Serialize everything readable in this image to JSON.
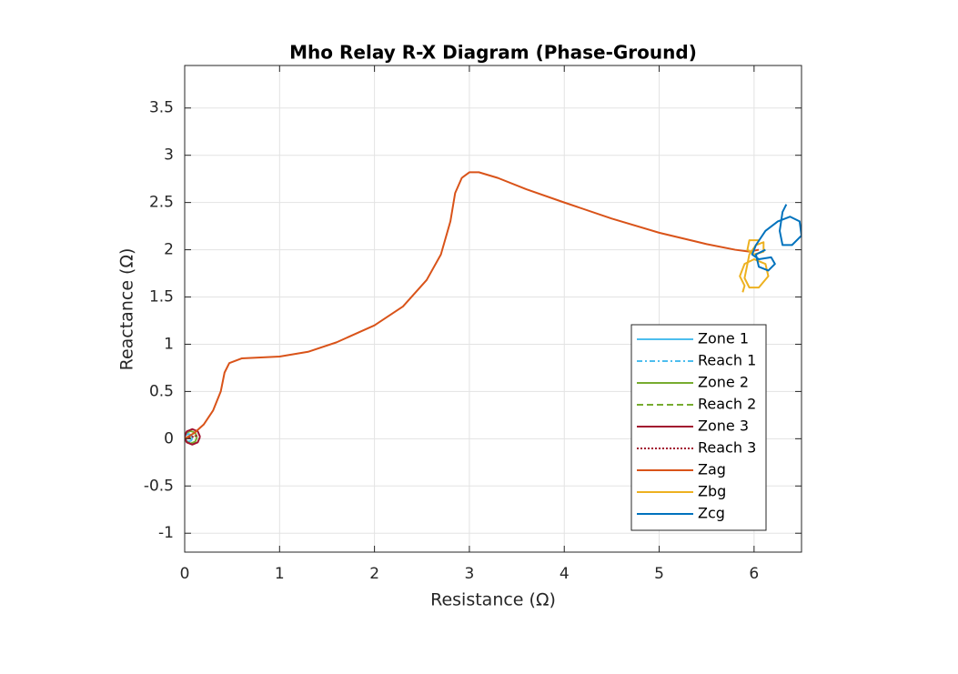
{
  "chart_data": {
    "type": "line",
    "title": "Mho Relay R-X Diagram (Phase-Ground)",
    "xlabel": "Resistance (Ω)",
    "ylabel": "Reactance (Ω)",
    "xlim": [
      0,
      6.5
    ],
    "ylim": [
      -1.2,
      3.95
    ],
    "xticks": [
      0,
      1,
      2,
      3,
      4,
      5,
      6
    ],
    "yticks": [
      -1,
      -0.5,
      0,
      0.5,
      1,
      1.5,
      2,
      2.5,
      3,
      3.5
    ],
    "grid": true,
    "legend_location": "southeast",
    "series": [
      {
        "name": "Zone 1",
        "color": "#4DBEEE",
        "dash": "solid",
        "x": [
          0.081,
          0.069,
          0.04,
          0.011,
          -0.001,
          0.011,
          0.04,
          0.069,
          0.081
        ],
        "y": [
          0.01,
          0.039,
          0.051,
          0.039,
          0.01,
          -0.019,
          -0.031,
          -0.019,
          0.01
        ]
      },
      {
        "name": "Reach 1",
        "color": "#4DBEEE",
        "dash": "dashdot",
        "x": [
          0,
          0.08
        ],
        "y": [
          0,
          0.02
        ]
      },
      {
        "name": "Zone 2",
        "color": "#77AC30",
        "dash": "solid",
        "x": [
          0.13,
          0.111,
          0.064,
          0.017,
          -0.002,
          0.017,
          0.064,
          0.111,
          0.13
        ],
        "y": [
          0.016,
          0.063,
          0.082,
          0.063,
          0.016,
          -0.031,
          -0.05,
          -0.031,
          0.016
        ]
      },
      {
        "name": "Reach 2",
        "color": "#77AC30",
        "dash": "dashed",
        "x": [
          0,
          0.128
        ],
        "y": [
          0,
          0.032
        ]
      },
      {
        "name": "Zone 3",
        "color": "#A2142F",
        "dash": "solid",
        "x": [
          0.162,
          0.138,
          0.08,
          0.022,
          -0.002,
          0.022,
          0.08,
          0.138,
          0.162
        ],
        "y": [
          0.02,
          0.078,
          0.102,
          0.078,
          0.02,
          -0.038,
          -0.062,
          -0.038,
          0.02
        ]
      },
      {
        "name": "Reach 3",
        "color": "#A2142F",
        "dash": "dotted",
        "x": [
          0,
          0.16
        ],
        "y": [
          0,
          0.04
        ]
      },
      {
        "name": "Zag",
        "color": "#D95319",
        "dash": "solid",
        "x": [
          0,
          0.1,
          0.2,
          0.3,
          0.38,
          0.42,
          0.47,
          0.6,
          0.8,
          1.0,
          1.3,
          1.6,
          2.0,
          2.3,
          2.55,
          2.7,
          2.8,
          2.85,
          2.92,
          3.0,
          3.1,
          3.3,
          3.6,
          4.0,
          4.5,
          5.0,
          5.5,
          5.8,
          5.95,
          6.05
        ],
        "y": [
          0,
          0.06,
          0.15,
          0.3,
          0.5,
          0.7,
          0.8,
          0.85,
          0.86,
          0.87,
          0.92,
          1.02,
          1.2,
          1.4,
          1.68,
          1.95,
          2.3,
          2.6,
          2.76,
          2.82,
          2.82,
          2.76,
          2.64,
          2.5,
          2.33,
          2.18,
          2.06,
          2.0,
          1.98,
          2.0
        ]
      },
      {
        "name": "Zbg",
        "color": "#EDB120",
        "dash": "solid",
        "x": [
          5.88,
          5.9,
          5.85,
          5.9,
          6.0,
          6.12,
          6.15,
          6.05,
          5.95,
          5.9,
          5.95,
          6.02,
          6.1,
          6.1,
          6.0,
          5.93,
          5.95,
          6.05
        ],
        "y": [
          1.55,
          1.62,
          1.72,
          1.85,
          1.9,
          1.85,
          1.72,
          1.6,
          1.6,
          1.7,
          1.95,
          2.05,
          2.08,
          1.98,
          1.95,
          2.0,
          2.1,
          2.1
        ]
      },
      {
        "name": "Zcg",
        "color": "#0072BD",
        "dash": "solid",
        "x": [
          6.34,
          6.3,
          6.27,
          6.3,
          6.4,
          6.5,
          6.48,
          6.38,
          6.25,
          6.12,
          6.02,
          5.98,
          6.05,
          6.18,
          6.22,
          6.15,
          6.05,
          6.02,
          6.12
        ],
        "y": [
          2.48,
          2.4,
          2.2,
          2.05,
          2.05,
          2.15,
          2.3,
          2.35,
          2.3,
          2.2,
          2.05,
          1.95,
          1.9,
          1.92,
          1.85,
          1.78,
          1.82,
          1.95,
          2.0
        ]
      }
    ]
  }
}
